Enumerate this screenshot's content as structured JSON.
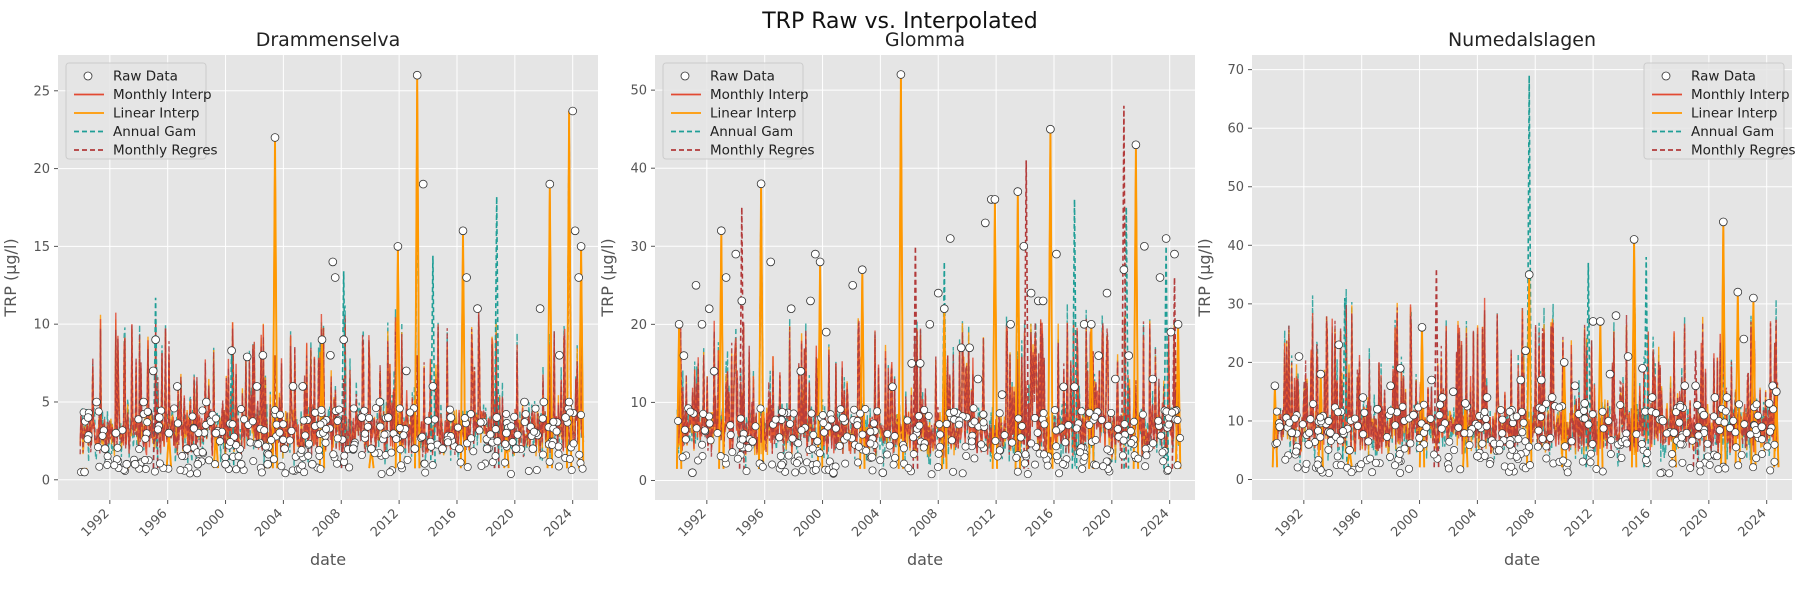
{
  "figure": {
    "title": "TRP Raw vs. Interpolated"
  },
  "legend_labels": [
    "Raw Data",
    "Monthly Interp",
    "Linear Interp",
    "Annual Gam",
    "Monthly Regres"
  ],
  "colors": {
    "raw_face": "#ffffff",
    "raw_edge": "#333333",
    "monthly_interp": "#E24A33",
    "linear_interp": "#FF9900",
    "annual_gam": "#1F9E96",
    "monthly_regres": "#B23A3A",
    "axes_bg": "#E5E5E5",
    "grid": "#FFFFFF"
  },
  "chart_data": [
    {
      "type": "line",
      "title": "Drammenselva",
      "xlabel": "date",
      "ylabel": "TRP (µg/l)",
      "xlim": [
        "1988-06-01",
        "2025-10-01"
      ],
      "ylim": [
        -1.3,
        27.3
      ],
      "xticks": [
        "1992",
        "1996",
        "2000",
        "2004",
        "2008",
        "2012",
        "2016",
        "2020",
        "2024"
      ],
      "yticks": [
        0,
        5,
        10,
        15,
        20,
        25
      ],
      "legend_loc": "upper left",
      "series": [
        {
          "name": "Raw Data",
          "style": "markers",
          "x": [
            "1990-04",
            "1990-07",
            "1991-02",
            "1991-09",
            "1992-06",
            "1993-03",
            "1993-10",
            "1994-05",
            "1995-01",
            "1995-03",
            "1995-06",
            "1996-02",
            "1996-09",
            "1997-05",
            "1998-02",
            "1998-09",
            "1999-05",
            "2000-01",
            "2000-06",
            "2001-02",
            "2001-07",
            "2002-03",
            "2002-08",
            "2002-12",
            "2003-06",
            "2004-02",
            "2004-09",
            "2005-05",
            "2006-01",
            "2006-09",
            "2007-04",
            "2007-06",
            "2007-08",
            "2008-03",
            "2008-11",
            "2009-06",
            "2010-02",
            "2010-09",
            "2011-04",
            "2011-12",
            "2012-07",
            "2013-02",
            "2013-04",
            "2013-09",
            "2014-05",
            "2015-01",
            "2015-08",
            "2016-03",
            "2016-06",
            "2016-09",
            "2017-06",
            "2018-02",
            "2018-10",
            "2019-06",
            "2020-02",
            "2020-09",
            "2021-04",
            "2021-10",
            "2022-01",
            "2022-06",
            "2023-02",
            "2023-07",
            "2023-10",
            "2024-01",
            "2024-03",
            "2024-06",
            "2024-08"
          ],
          "y": [
            0.5,
            4.0,
            5.0,
            2.0,
            3.0,
            1.0,
            1.0,
            5.0,
            7.0,
            9.0,
            4.0,
            3.0,
            6.0,
            2.0,
            1.0,
            5.0,
            3.0,
            1.0,
            8.3,
            1.0,
            7.9,
            6.0,
            8.0,
            1.0,
            22.0,
            2.0,
            6.0,
            6.0,
            1.0,
            9.0,
            8.0,
            14.0,
            13.0,
            9.0,
            2.0,
            4.0,
            2.0,
            5.0,
            4.0,
            15.0,
            7.0,
            2.0,
            26.0,
            19.0,
            6.0,
            2.0,
            4.0,
            2.0,
            16.0,
            13.0,
            11.0,
            2.0,
            4.0,
            3.0,
            2.0,
            5.0,
            2.0,
            11.0,
            5.0,
            19.0,
            8.0,
            4.0,
            5.0,
            23.7,
            16.0,
            13.0,
            15.0
          ]
        },
        {
          "name": "Monthly Interp",
          "style": "solid",
          "x": [
            "1990-04",
            "1993-03",
            "1996-02",
            "1999-05",
            "2002-12",
            "2003-06",
            "2006-09",
            "2010-02",
            "2011-12",
            "2013-04",
            "2016-06",
            "2019-06",
            "2022-06",
            "2023-10",
            "2024-08"
          ],
          "y": [
            0.5,
            1.0,
            3.0,
            3.0,
            1.0,
            22.0,
            9.0,
            2.0,
            15.0,
            26.0,
            16.0,
            3.0,
            19.0,
            23.7,
            15.0
          ]
        },
        {
          "name": "Linear Interp",
          "style": "solid",
          "x": [
            "1990-04",
            "1993-03",
            "1996-02",
            "1999-05",
            "2002-12",
            "2003-06",
            "2006-09",
            "2010-02",
            "2011-12",
            "2013-04",
            "2016-06",
            "2019-06",
            "2022-06",
            "2023-10",
            "2024-08"
          ],
          "y": [
            0.5,
            1.0,
            3.0,
            3.0,
            1.0,
            22.0,
            9.0,
            2.0,
            15.0,
            26.0,
            16.0,
            3.0,
            19.0,
            23.7,
            15.0
          ]
        },
        {
          "name": "Annual Gam",
          "style": "dashed",
          "x": [
            "1995-03",
            "2000-06",
            "2008-03",
            "2013-04",
            "2014-05",
            "2018-10",
            "2023-10"
          ],
          "y": [
            11.7,
            8.2,
            13.4,
            22.0,
            14.4,
            18.2,
            23.0
          ]
        },
        {
          "name": "Monthly Regres",
          "style": "dashed",
          "x": [
            "1995-03",
            "2003-06",
            "2008-03",
            "2013-04",
            "2018-10",
            "2023-10"
          ],
          "y": [
            7.0,
            8.0,
            6.5,
            8.0,
            6.0,
            20.0
          ]
        }
      ]
    },
    {
      "type": "line",
      "title": "Glomma",
      "xlabel": "date",
      "ylabel": "TRP (µg/l)",
      "xlim": [
        "1988-06-01",
        "2025-10-01"
      ],
      "ylim": [
        -2.5,
        54.5
      ],
      "xticks": [
        "1992",
        "1996",
        "2000",
        "2004",
        "2008",
        "2012",
        "2016",
        "2020",
        "2024"
      ],
      "yticks": [
        0,
        10,
        20,
        30,
        40,
        50
      ],
      "legend_loc": "upper left",
      "series": [
        {
          "name": "Raw Data",
          "style": "markers",
          "x": [
            "1990-02",
            "1990-06",
            "1991-01",
            "1991-04",
            "1991-09",
            "1992-03",
            "1992-07",
            "1993-01",
            "1993-05",
            "1994-01",
            "1994-06",
            "1995-03",
            "1995-10",
            "1996-06",
            "1997-03",
            "1997-11",
            "1998-07",
            "1999-03",
            "1999-07",
            "1999-11",
            "2000-04",
            "2000-10",
            "2001-06",
            "2002-02",
            "2002-10",
            "2003-06",
            "2004-03",
            "2004-11",
            "2005-06",
            "2006-03",
            "2006-10",
            "2007-06",
            "2008-01",
            "2008-06",
            "2008-11",
            "2009-08",
            "2010-03",
            "2010-10",
            "2011-04",
            "2011-09",
            "2011-12",
            "2012-06",
            "2013-01",
            "2013-07",
            "2013-12",
            "2014-06",
            "2014-12",
            "2015-04",
            "2015-10",
            "2016-03",
            "2016-09",
            "2017-06",
            "2018-02",
            "2018-08",
            "2019-02",
            "2019-09",
            "2020-04",
            "2020-11",
            "2021-03",
            "2021-09",
            "2022-04",
            "2022-11",
            "2023-05",
            "2023-10",
            "2024-02",
            "2024-05",
            "2024-08"
          ],
          "y": [
            20.0,
            16.0,
            1.0,
            25.0,
            20.0,
            22.0,
            14.0,
            32.0,
            26.0,
            29.0,
            23.0,
            5.0,
            38.0,
            28.0,
            2.0,
            22.0,
            14.0,
            23.0,
            29.0,
            28.0,
            19.0,
            1.0,
            8.0,
            25.0,
            27.0,
            3.0,
            1.0,
            12.0,
            52.0,
            15.0,
            15.0,
            20.0,
            24.0,
            22.0,
            31.0,
            17.0,
            17.0,
            13.0,
            33.0,
            36.0,
            36.0,
            11.0,
            20.0,
            37.0,
            30.0,
            24.0,
            23.0,
            23.0,
            45.0,
            29.0,
            12.0,
            12.0,
            20.0,
            20.0,
            16.0,
            24.0,
            13.0,
            27.0,
            16.0,
            43.0,
            30.0,
            13.0,
            26.0,
            31.0,
            19.0,
            29.0,
            20.0
          ]
        },
        {
          "name": "Monthly Interp",
          "style": "solid",
          "x": [
            "1990-02",
            "1993-01",
            "1995-10",
            "1999-11",
            "2002-10",
            "2005-06",
            "2008-06",
            "2011-12",
            "2013-07",
            "2015-10",
            "2018-08",
            "2021-09",
            "2024-08"
          ],
          "y": [
            20.0,
            32.0,
            38.0,
            28.0,
            27.0,
            52.0,
            22.0,
            36.0,
            37.0,
            45.0,
            20.0,
            43.0,
            20.0
          ]
        },
        {
          "name": "Linear Interp",
          "style": "solid",
          "x": [
            "1990-02",
            "1993-01",
            "1995-10",
            "1999-11",
            "2002-10",
            "2005-06",
            "2008-06",
            "2011-12",
            "2013-07",
            "2015-10",
            "2018-08",
            "2021-09",
            "2024-08"
          ],
          "y": [
            20.0,
            32.0,
            38.0,
            28.0,
            27.0,
            52.0,
            22.0,
            36.0,
            37.0,
            45.0,
            20.0,
            43.0,
            20.0
          ]
        },
        {
          "name": "Annual Gam",
          "style": "dashed",
          "x": [
            "1995-10",
            "2008-06",
            "2013-07",
            "2017-06",
            "2021-01",
            "2023-10"
          ],
          "y": [
            37.0,
            28.0,
            33.0,
            36.0,
            35.0,
            30.0
          ]
        },
        {
          "name": "Monthly Regres",
          "style": "dashed",
          "x": [
            "1994-06",
            "2006-06",
            "2014-02",
            "2020-11",
            "2024-05"
          ],
          "y": [
            35.0,
            30.0,
            41.0,
            48.0,
            26.0
          ]
        }
      ]
    },
    {
      "type": "line",
      "title": "Numedalslagen",
      "xlabel": "date",
      "ylabel": "TRP (µg/l)",
      "xlim": [
        "1988-06-01",
        "2025-10-01"
      ],
      "ylim": [
        -3.5,
        72.5
      ],
      "xticks": [
        "1992",
        "1996",
        "2000",
        "2004",
        "2008",
        "2012",
        "2016",
        "2020",
        "2024"
      ],
      "yticks": [
        0,
        10,
        20,
        30,
        40,
        50,
        60,
        70
      ],
      "legend_loc": "upper right",
      "series": [
        {
          "name": "Raw Data",
          "style": "markers",
          "x": [
            "1990-01",
            "1990-05",
            "1991-03",
            "1991-09",
            "1992-05",
            "1993-03",
            "1993-11",
            "1994-06",
            "1995-03",
            "1996-02",
            "1997-02",
            "1998-01",
            "1998-09",
            "1999-08",
            "2000-03",
            "2000-11",
            "2001-08",
            "2002-05",
            "2003-03",
            "2004-01",
            "2004-09",
            "2005-07",
            "2006-04",
            "2007-01",
            "2007-05",
            "2007-08",
            "2008-06",
            "2009-03",
            "2010-01",
            "2010-10",
            "2011-06",
            "2012-01",
            "2012-07",
            "2013-03",
            "2013-08",
            "2014-06",
            "2014-11",
            "2015-06",
            "2016-02",
            "2016-11",
            "2017-08",
            "2018-05",
            "2019-02",
            "2019-09",
            "2020-06",
            "2021-01",
            "2021-04",
            "2022-01",
            "2022-06",
            "2023-02",
            "2023-09",
            "2024-03",
            "2024-06",
            "2024-09"
          ],
          "y": [
            16.0,
            9.0,
            8.0,
            21.0,
            6.0,
            18.0,
            8.0,
            23.0,
            5.0,
            14.0,
            12.0,
            16.0,
            19.0,
            11.0,
            26.0,
            17.0,
            14.0,
            15.0,
            13.0,
            4.0,
            14.0,
            5.0,
            6.0,
            17.0,
            22.0,
            35.0,
            17.0,
            14.0,
            20.0,
            16.0,
            13.0,
            27.0,
            27.0,
            18.0,
            28.0,
            21.0,
            41.0,
            19.0,
            14.0,
            10.0,
            8.0,
            16.0,
            16.0,
            11.0,
            14.0,
            44.0,
            14.0,
            32.0,
            24.0,
            31.0,
            9.0,
            13.0,
            16.0,
            15.0
          ]
        },
        {
          "name": "Monthly Interp",
          "style": "solid",
          "x": [
            "1990-01",
            "1993-03",
            "1995-03",
            "2000-03",
            "2003-03",
            "2007-08",
            "2010-01",
            "2012-07",
            "2014-11",
            "2017-08",
            "2021-01",
            "2022-01",
            "2023-02",
            "2024-09"
          ],
          "y": [
            16.0,
            18.0,
            5.0,
            26.0,
            13.0,
            35.0,
            20.0,
            27.0,
            41.0,
            8.0,
            44.0,
            32.0,
            31.0,
            15.0
          ]
        },
        {
          "name": "Linear Interp",
          "style": "solid",
          "x": [
            "1990-01",
            "1993-03",
            "1995-03",
            "2000-03",
            "2003-03",
            "2007-08",
            "2010-01",
            "2012-07",
            "2014-11",
            "2017-08",
            "2021-01",
            "2022-01",
            "2023-02",
            "2024-09"
          ],
          "y": [
            16.0,
            18.0,
            5.0,
            26.0,
            13.0,
            35.0,
            20.0,
            27.0,
            41.0,
            8.0,
            44.0,
            32.0,
            31.0,
            15.0
          ]
        },
        {
          "name": "Annual Gam",
          "style": "dashed",
          "x": [
            "1994-11",
            "2007-08",
            "2011-09",
            "2015-09",
            "2021-01"
          ],
          "y": [
            31.0,
            69.0,
            37.0,
            38.0,
            25.0
          ]
        },
        {
          "name": "Monthly Regres",
          "style": "dashed",
          "x": [
            "2001-03",
            "2019-02",
            "2021-01"
          ],
          "y": [
            36.0,
            22.0,
            26.0
          ]
        }
      ]
    }
  ]
}
